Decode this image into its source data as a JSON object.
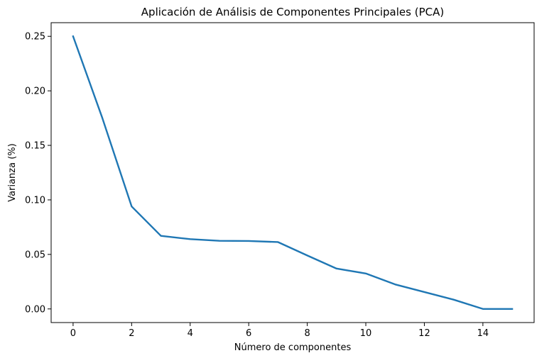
{
  "chart_data": {
    "type": "line",
    "title": "Aplicación de Análisis de Componentes Principales (PCA)",
    "xlabel": "Número de componentes",
    "ylabel": "Varianza (%)",
    "xlim": [
      -0.75,
      15.75
    ],
    "ylim": [
      -0.0125,
      0.2625
    ],
    "xticks": [
      0,
      2,
      4,
      6,
      8,
      10,
      12,
      14
    ],
    "xtick_labels": [
      "0",
      "2",
      "4",
      "6",
      "8",
      "10",
      "12",
      "14"
    ],
    "yticks": [
      0.0,
      0.05,
      0.1,
      0.15,
      0.2,
      0.25
    ],
    "ytick_labels": [
      "0.00",
      "0.05",
      "0.10",
      "0.15",
      "0.20",
      "0.25"
    ],
    "grid": false,
    "legend": "none",
    "series": [
      {
        "color": "#1f77b4",
        "x": [
          0,
          1,
          2,
          3,
          4,
          5,
          6,
          7,
          8,
          9,
          10,
          11,
          12,
          13,
          14,
          15
        ],
        "values": [
          0.25,
          0.175,
          0.094,
          0.067,
          0.064,
          0.0625,
          0.0623,
          0.0613,
          0.049,
          0.037,
          0.0325,
          0.0225,
          0.0155,
          0.0085,
          0.0,
          0.0
        ]
      }
    ]
  }
}
